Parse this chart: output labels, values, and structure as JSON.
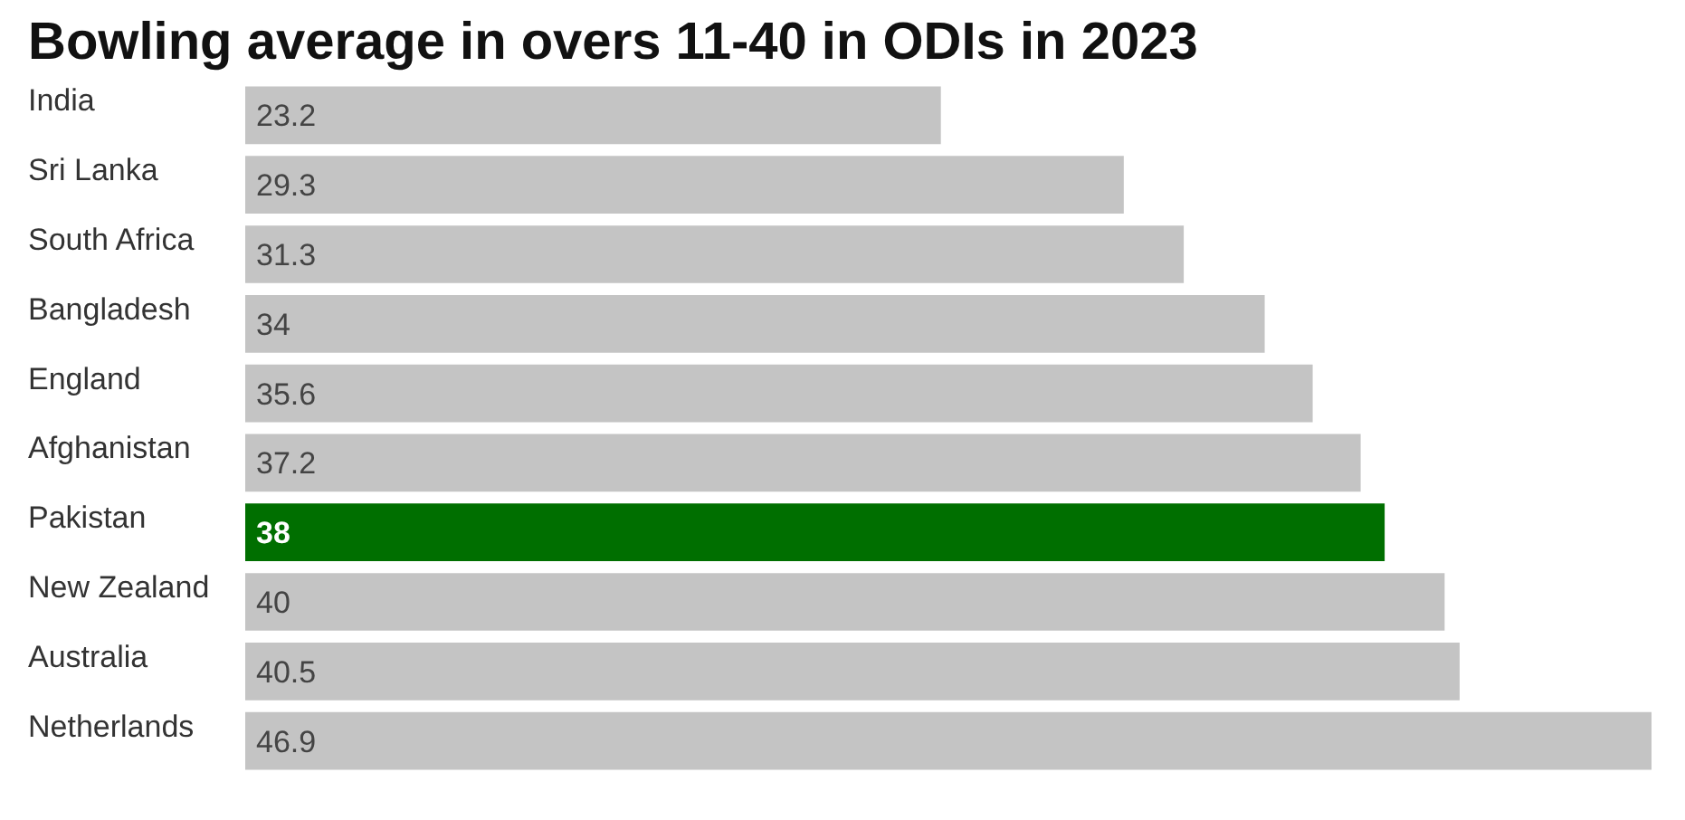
{
  "chart_data": {
    "type": "bar",
    "orientation": "horizontal",
    "title": "Bowling average in overs 11-40 in ODIs in 2023",
    "categories": [
      "India",
      "Sri Lanka",
      "South Africa",
      "Bangladesh",
      "England",
      "Afghanistan",
      "Pakistan",
      "New Zealand",
      "Australia",
      "Netherlands"
    ],
    "values": [
      23.2,
      29.3,
      31.3,
      34,
      35.6,
      37.2,
      38,
      40,
      40.5,
      46.9
    ],
    "colors": [
      "#c4c4c4",
      "#c4c4c4",
      "#c4c4c4",
      "#c4c4c4",
      "#c4c4c4",
      "#c4c4c4",
      "#006f00",
      "#c4c4c4",
      "#c4c4c4",
      "#c4c4c4"
    ],
    "data_labels": true
  }
}
